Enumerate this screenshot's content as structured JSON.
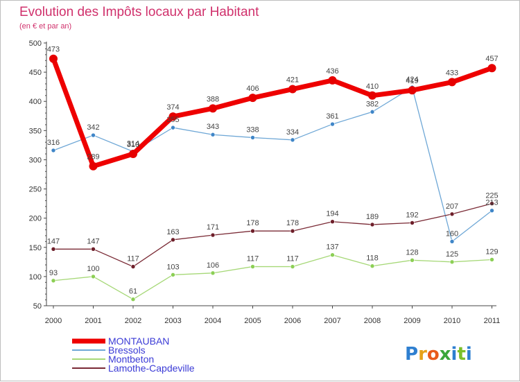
{
  "chart_data": {
    "type": "line",
    "title": "Evolution des Impôts locaux par Habitant",
    "subtitle": "(en € et par an)",
    "xlabel": "",
    "ylabel": "",
    "ylim": [
      50,
      500
    ],
    "yticks": [
      50,
      100,
      150,
      200,
      250,
      300,
      350,
      400,
      450,
      500
    ],
    "categories": [
      "2000",
      "2001",
      "2002",
      "2003",
      "2004",
      "2005",
      "2006",
      "2007",
      "2008",
      "2009",
      "2010",
      "2011"
    ],
    "series": [
      {
        "name": "Bressols",
        "color": "#6ea7d6",
        "marker": "#3f86c8",
        "width": 1.3,
        "radius": 3,
        "values": [
          316,
          342,
          314,
          355,
          343,
          338,
          334,
          361,
          382,
          424,
          160,
          213
        ]
      },
      {
        "name": "Montbeton",
        "color": "#a6d877",
        "marker": "#8ccf55",
        "width": 1.3,
        "radius": 3,
        "values": [
          93,
          100,
          61,
          103,
          106,
          117,
          117,
          137,
          118,
          128,
          125,
          129
        ]
      },
      {
        "name": "Lamothe-Capdeville",
        "color": "#7a2a35",
        "marker": "#6e1f2a",
        "width": 1.3,
        "radius": 3,
        "values": [
          147,
          147,
          117,
          163,
          171,
          178,
          178,
          194,
          189,
          192,
          207,
          225
        ]
      },
      {
        "name": "MONTAUBAN",
        "color": "#ee0000",
        "marker": "#e60000",
        "width": 7,
        "radius": 6,
        "values": [
          473,
          289,
          310,
          374,
          388,
          406,
          421,
          436,
          410,
          419,
          433,
          457
        ]
      }
    ],
    "legend": [
      "MONTAUBAN",
      "Bressols",
      "Montbeton",
      "Lamothe-Capdeville"
    ],
    "legend_position": "bottom-left",
    "grid": false
  },
  "brand": {
    "text": "Proxiti",
    "letters": [
      "P",
      "r",
      "o",
      "x",
      "i",
      "t",
      "i"
    ],
    "colors": [
      "#2e7fd0",
      "#e6a21a",
      "#e85a1b",
      "#3aa63a",
      "#2e7fd0",
      "#7bbf2a",
      "#2e7fd0"
    ]
  }
}
